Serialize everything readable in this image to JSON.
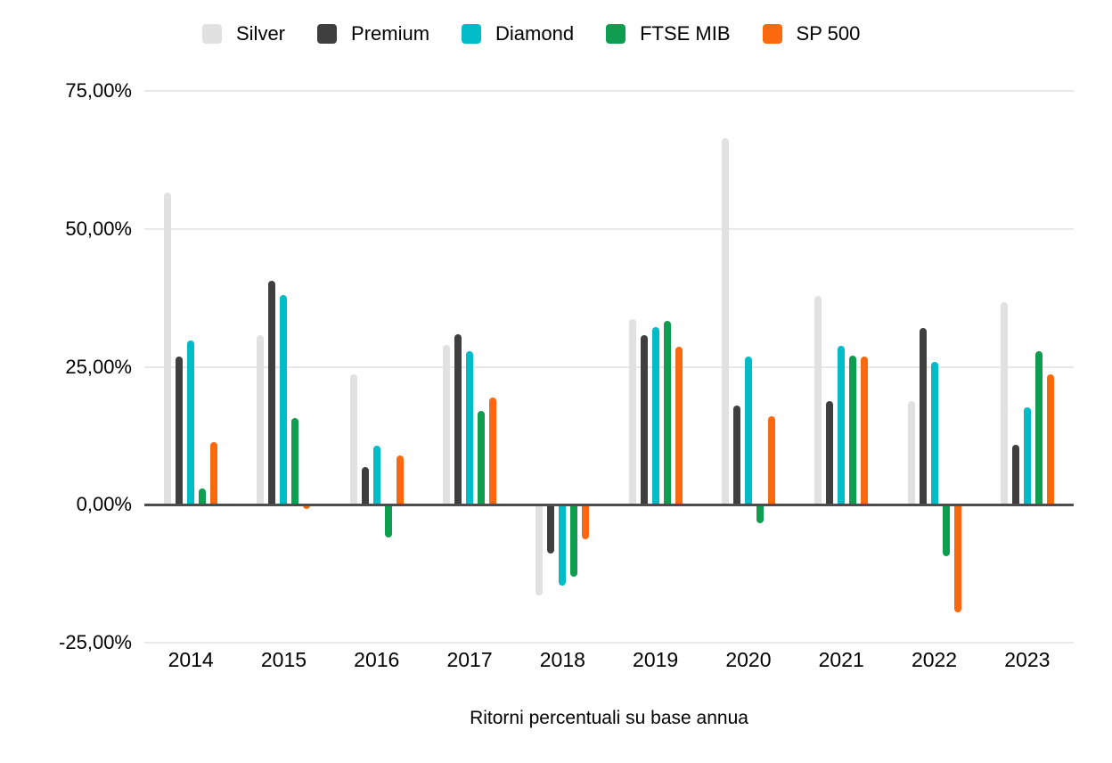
{
  "chart_data": {
    "type": "bar",
    "title": "",
    "xlabel": "Ritorni percentuali su base annua",
    "ylabel": "",
    "categories": [
      "2014",
      "2015",
      "2016",
      "2017",
      "2018",
      "2019",
      "2020",
      "2021",
      "2022",
      "2023"
    ],
    "series": [
      {
        "name": "Silver",
        "color": "#e1e1e1",
        "values": [
          56.6,
          30.7,
          23.6,
          28.9,
          -16.4,
          33.6,
          66.5,
          37.9,
          18.7,
          36.7
        ]
      },
      {
        "name": "Premium",
        "color": "#3f3f3f",
        "values": [
          26.8,
          40.6,
          6.8,
          30.9,
          -8.9,
          30.7,
          17.9,
          18.8,
          32.0,
          10.9
        ]
      },
      {
        "name": "Diamond",
        "color": "#00bcc9",
        "values": [
          29.8,
          38.0,
          10.7,
          27.8,
          -14.6,
          32.2,
          26.9,
          28.8,
          25.9,
          17.6
        ]
      },
      {
        "name": "FTSE MIB",
        "color": "#0f9d4f",
        "values": [
          3.0,
          15.7,
          -6.0,
          17.0,
          -13.0,
          33.4,
          -3.3,
          27.0,
          -9.3,
          27.8
        ]
      },
      {
        "name": "SP 500",
        "color": "#fa690e",
        "values": [
          11.4,
          -0.7,
          9.0,
          19.5,
          -6.2,
          28.7,
          16.1,
          26.8,
          -19.5,
          23.6
        ]
      }
    ],
    "y_ticks": [
      {
        "label": "75,00%",
        "value": 75
      },
      {
        "label": "50,00%",
        "value": 50
      },
      {
        "label": "25,00%",
        "value": 25
      },
      {
        "label": "0,00%",
        "value": 0
      },
      {
        "label": "-25,00%",
        "value": -25
      }
    ],
    "ylim": [
      -25,
      75
    ],
    "grid": true,
    "legend_position": "top",
    "colors": {
      "background": "#ffffff",
      "gridline": "#e8e8e8",
      "zero_axis": "#4d4d4d",
      "text": "#000000"
    }
  }
}
